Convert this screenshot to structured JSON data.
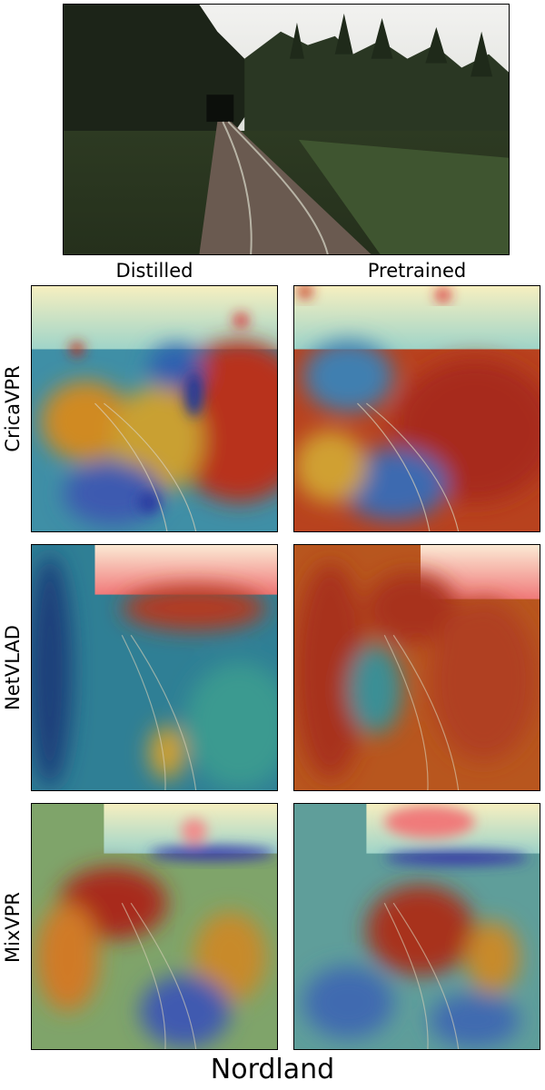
{
  "figure": {
    "column_labels": [
      "Distilled",
      "Pretrained"
    ],
    "row_labels": [
      "CricaVPR",
      "NetVLAD",
      "MixVPR"
    ],
    "dataset_label": "Nordland"
  },
  "images": {
    "query": "railway-track-forest-photo",
    "panels": [
      {
        "method": "CricaVPR",
        "variant": "Distilled",
        "content": "attention-heatmap-overlay"
      },
      {
        "method": "CricaVPR",
        "variant": "Pretrained",
        "content": "attention-heatmap-overlay"
      },
      {
        "method": "NetVLAD",
        "variant": "Distilled",
        "content": "attention-heatmap-overlay"
      },
      {
        "method": "NetVLAD",
        "variant": "Pretrained",
        "content": "attention-heatmap-overlay"
      },
      {
        "method": "MixVPR",
        "variant": "Distilled",
        "content": "attention-heatmap-overlay"
      },
      {
        "method": "MixVPR",
        "variant": "Pretrained",
        "content": "attention-heatmap-overlay"
      }
    ]
  },
  "colors": {
    "heat_high": "#b3261e",
    "heat_mid": "#e0a020",
    "heat_low": "#2f5fb0",
    "heat_cool": "#3aa0a0",
    "sky": "#f7d6c8",
    "forest": "#23321f"
  }
}
